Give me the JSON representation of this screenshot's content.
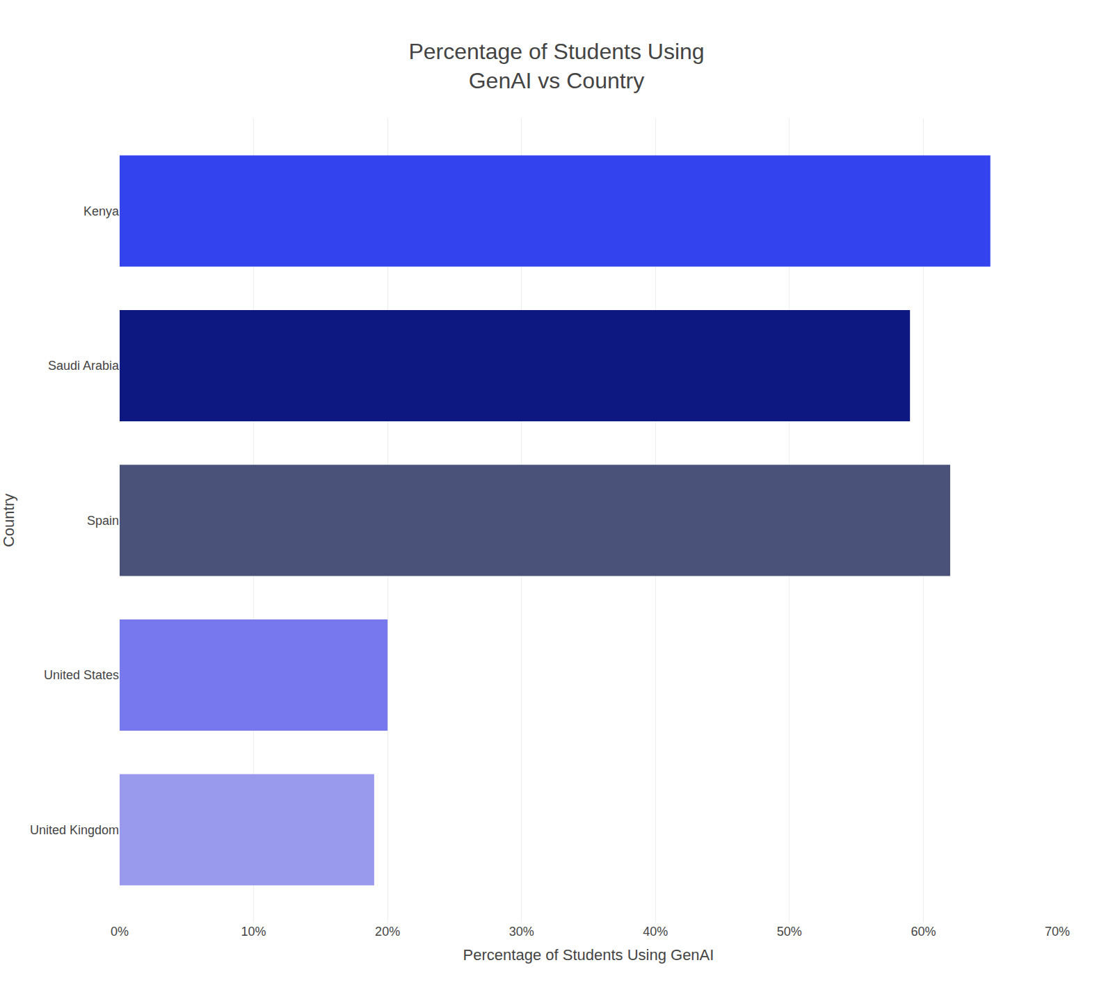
{
  "chart_data": {
    "type": "bar",
    "orientation": "horizontal",
    "title": "Percentage of Students Using\nGenAI vs Country",
    "xlabel": "Percentage of Students Using GenAI",
    "ylabel": "Country",
    "categories": [
      "United Kingdom",
      "United States",
      "Spain",
      "Saudi Arabia",
      "Kenya"
    ],
    "values": [
      19,
      20,
      62,
      59,
      65
    ],
    "colors": [
      "#9999EE",
      "#7777EE",
      "#4A527A",
      "#0D1880",
      "#3344EE"
    ],
    "xlim": [
      0,
      70
    ],
    "xticks": [
      {
        "value": 0,
        "label": "0%"
      },
      {
        "value": 10,
        "label": "10%"
      },
      {
        "value": 20,
        "label": "20%"
      },
      {
        "value": 30,
        "label": "30%"
      },
      {
        "value": 40,
        "label": "40%"
      },
      {
        "value": 50,
        "label": "50%"
      },
      {
        "value": 60,
        "label": "60%"
      },
      {
        "value": 70,
        "label": "70%"
      }
    ],
    "grid": true
  }
}
